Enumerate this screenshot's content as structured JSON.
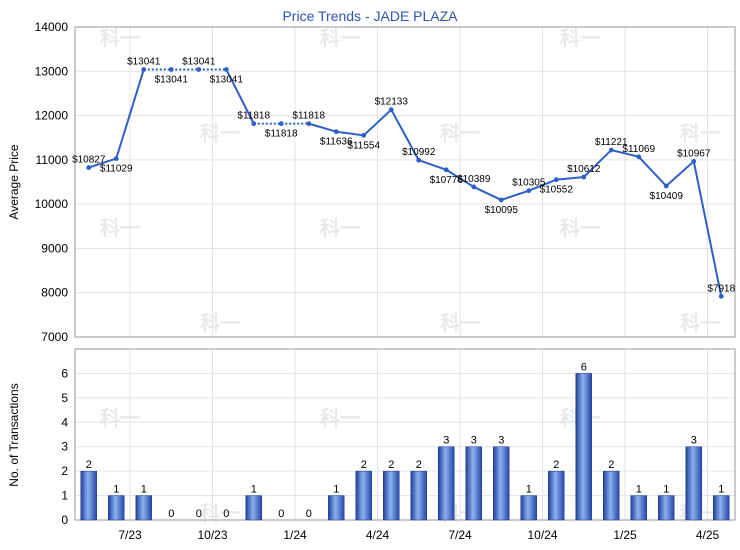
{
  "chart_data": [
    {
      "type": "line",
      "title": "Price Trends - JADE PLAZA",
      "ylabel": "Average Price",
      "ylim": [
        7000,
        14000
      ],
      "yticks": [
        7000,
        8000,
        9000,
        10000,
        11000,
        12000,
        13000,
        14000
      ],
      "grid": true,
      "series": [
        {
          "values": [
            10827,
            11029,
            13041,
            13041,
            13041,
            13041,
            11818,
            11818,
            11818,
            11636,
            11554,
            12133,
            10992,
            10776,
            10389,
            10095,
            10305,
            10552,
            10612,
            11221,
            11069,
            10409,
            10967,
            7918
          ],
          "labels": [
            "$10827",
            "$11029",
            "$13041",
            "$13041",
            "$13041",
            "$13041",
            "$11818",
            "$11818",
            "$11818",
            "$11636",
            "$11554",
            "$12133",
            "$10992",
            "$10776",
            "$10389",
            "$10095",
            "$10305",
            "$10552",
            "$10612",
            "$11221",
            "$11069",
            "$10409",
            "$10967",
            "$7918"
          ],
          "color": "#2e5fc7"
        }
      ]
    },
    {
      "type": "bar",
      "ylabel": "No. of Transactions",
      "ylim": [
        0,
        7
      ],
      "yticks": [
        0,
        1,
        2,
        3,
        4,
        5,
        6
      ],
      "grid": true,
      "values": [
        2,
        1,
        1,
        0,
        0,
        0,
        1,
        0,
        0,
        1,
        2,
        2,
        2,
        3,
        3,
        3,
        1,
        2,
        6,
        2,
        1,
        1,
        3,
        1
      ],
      "x_tick_labels": [
        "7/23",
        "10/23",
        "1/24",
        "4/24",
        "7/24",
        "10/24",
        "1/25",
        "4/25"
      ],
      "x_tick_positions": [
        2,
        5,
        8,
        11,
        14,
        17,
        20,
        23
      ],
      "color": "#3a66c4"
    }
  ],
  "watermark": "科一"
}
